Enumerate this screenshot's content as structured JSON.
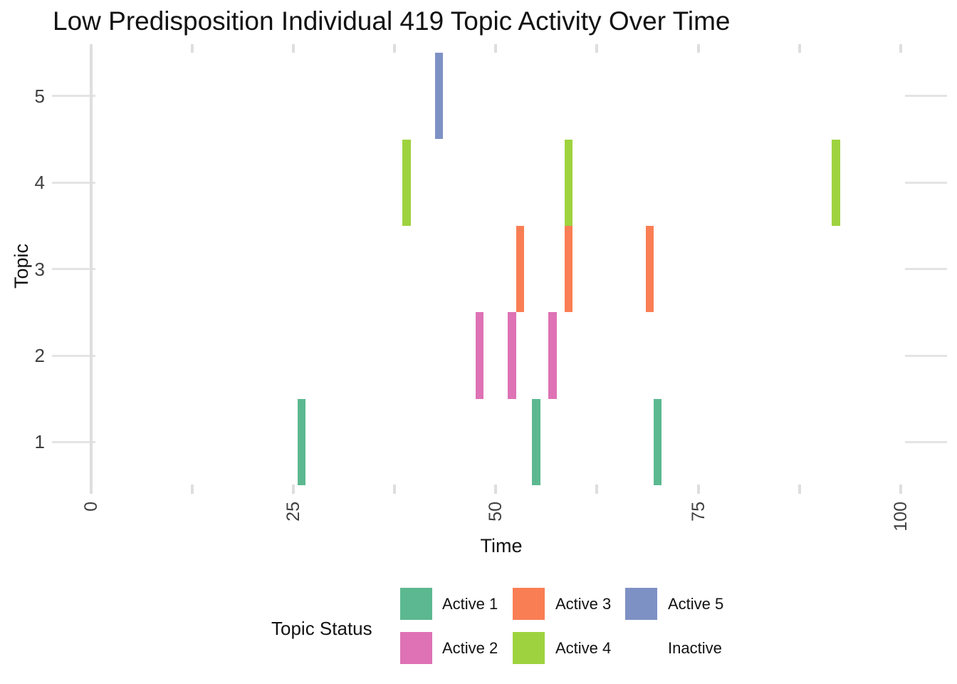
{
  "chart_data": {
    "type": "tile",
    "title": "Low Predisposition Individual 419 Topic Activity Over Time",
    "xlabel": "Time",
    "ylabel": "Topic",
    "x_major_ticks": [
      0,
      25,
      50,
      75,
      100
    ],
    "x_minor_ticks": [
      12.5,
      37.5,
      62.5,
      87.5
    ],
    "y_ticks": [
      1,
      2,
      3,
      4,
      5
    ],
    "xlim": [
      -4.8,
      105.6
    ],
    "ylim": [
      0.4,
      5.6
    ],
    "tile_width": 1,
    "grid_on": true,
    "grid_color": "#e4e4e4",
    "background_color": "#ffffff",
    "legend_position": "bottom",
    "series": [
      {
        "name": "Active 1",
        "topic": 1,
        "color": "#5cb890",
        "times": [
          26,
          55,
          70
        ]
      },
      {
        "name": "Active 2",
        "topic": 2,
        "color": "#de72b5",
        "times": [
          48,
          52,
          57
        ]
      },
      {
        "name": "Active 3",
        "topic": 3,
        "color": "#fa7e54",
        "times": [
          53,
          59,
          69
        ]
      },
      {
        "name": "Active 4",
        "topic": 4,
        "color": "#9ed33f",
        "times": [
          39,
          59,
          92
        ]
      },
      {
        "name": "Active 5",
        "topic": 5,
        "color": "#7e91c5",
        "times": [
          43
        ]
      }
    ],
    "legend": {
      "title": "Topic Status",
      "entries": [
        {
          "label": "Active 1",
          "color": "#5cb890"
        },
        {
          "label": "Active 2",
          "color": "#de72b5"
        },
        {
          "label": "Active 3",
          "color": "#fa7e54"
        },
        {
          "label": "Active 4",
          "color": "#9ed33f"
        },
        {
          "label": "Active 5",
          "color": "#7e91c5"
        },
        {
          "label": "Inactive",
          "color": null
        }
      ]
    }
  }
}
